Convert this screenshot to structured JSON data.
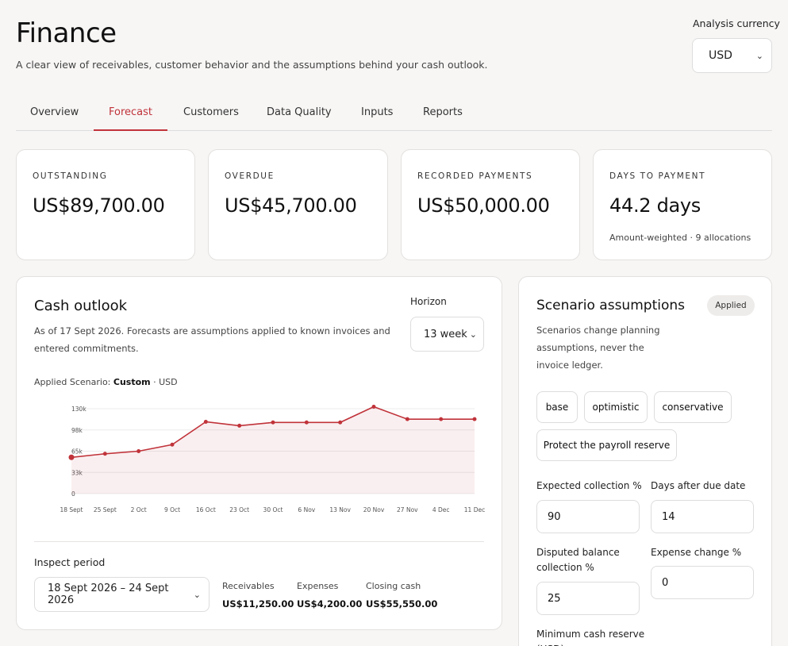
{
  "header": {
    "title": "Finance",
    "subtitle": "A clear view of receivables, customer behavior and the assumptions behind your cash outlook.",
    "currency_label": "Analysis currency",
    "currency_value": "USD"
  },
  "tabs": [
    "Overview",
    "Forecast",
    "Customers",
    "Data Quality",
    "Inputs",
    "Reports"
  ],
  "active_tab": "Forecast",
  "kpis": [
    {
      "label": "OUTSTANDING",
      "value": "US$89,700.00"
    },
    {
      "label": "OVERDUE",
      "value": "US$45,700.00"
    },
    {
      "label": "RECORDED PAYMENTS",
      "value": "US$50,000.00"
    },
    {
      "label": "DAYS TO PAYMENT",
      "value": "44.2 days",
      "note": "Amount-weighted · 9 allocations"
    }
  ],
  "cash": {
    "title": "Cash outlook",
    "description": "As of 17 Sept 2026. Forecasts are assumptions applied to known invoices and entered commitments.",
    "horizon_label": "Horizon",
    "horizon_value": "13 week",
    "applied_prefix": "Applied Scenario:",
    "applied_name": "Custom",
    "applied_suffix": "· USD",
    "inspect_label": "Inspect period",
    "period_value": "18 Sept 2026 – 24 Sept 2026",
    "stats": [
      {
        "label": "Receivables",
        "value": "US$11,250.00"
      },
      {
        "label": "Expenses",
        "value": "US$4,200.00"
      },
      {
        "label": "Closing cash",
        "value": "US$55,550.00"
      }
    ]
  },
  "chart_data": {
    "type": "area",
    "x": [
      "18 Sept",
      "25 Sept",
      "2 Oct",
      "9 Oct",
      "16 Oct",
      "23 Oct",
      "30 Oct",
      "6 Nov",
      "13 Nov",
      "20 Nov",
      "27 Nov",
      "4 Dec",
      "11 Dec"
    ],
    "y_ticks": [
      "0",
      "33k",
      "65k",
      "98k",
      "130k"
    ],
    "ylim": [
      0,
      130000
    ],
    "series": [
      {
        "values": [
          55550,
          61000,
          65000,
          75000,
          110000,
          104000,
          109000,
          109000,
          109000,
          133000,
          114000,
          114000,
          114000
        ]
      }
    ],
    "grid": true,
    "color": "#c0333a"
  },
  "scenario": {
    "title": "Scenario assumptions",
    "badge": "Applied",
    "description": "Scenarios change planning assumptions, never the invoice ledger.",
    "presets": [
      "base",
      "optimistic",
      "conservative",
      "Protect the payroll reserve"
    ],
    "fields": {
      "expected_collection_label": "Expected collection %",
      "expected_collection_value": "90",
      "days_after_due_label": "Days after due date",
      "days_after_due_value": "14",
      "disputed_label": "Disputed balance collection %",
      "disputed_value": "25",
      "expense_change_label": "Expense change %",
      "expense_change_value": "0",
      "min_reserve_label": "Minimum cash reserve (USD)"
    }
  }
}
